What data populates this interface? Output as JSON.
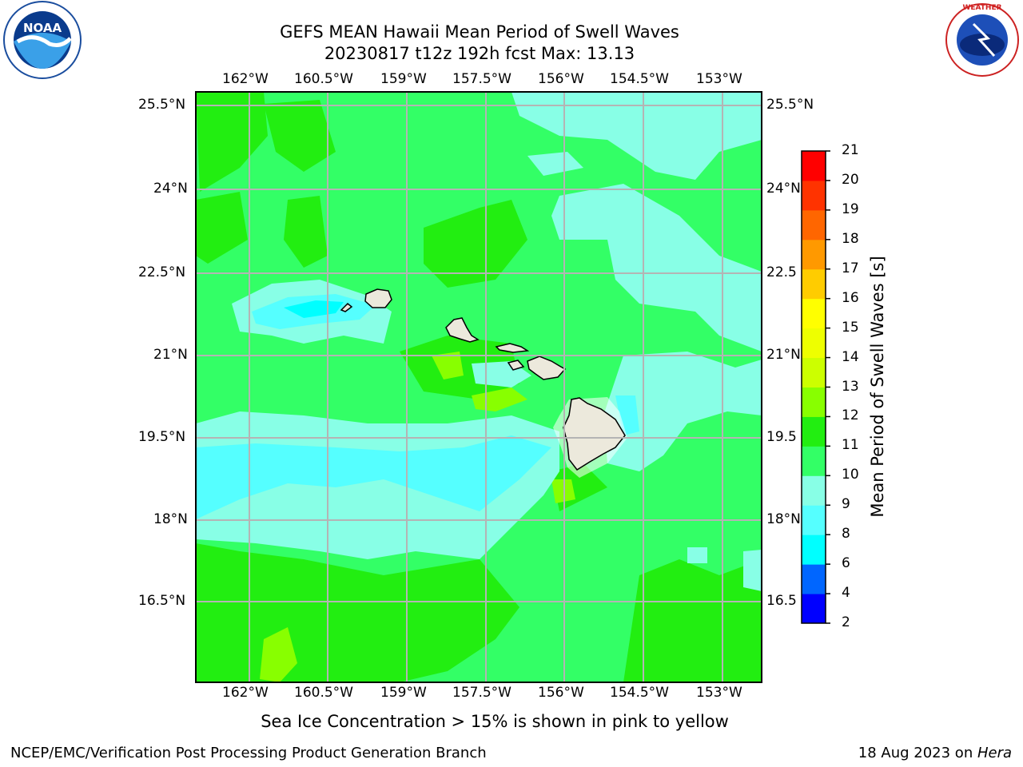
{
  "header": {
    "title_line1": "GEFS MEAN Hawaii Mean Period of Swell Waves",
    "title_line2": "20230817 t12z 192h fcst   Max: 13.13"
  },
  "map": {
    "lon_ticks": [
      "162°W",
      "160.5°W",
      "159°W",
      "157.5°W",
      "156°W",
      "154.5°W",
      "153°W"
    ],
    "lat_ticks": [
      "25.5°N",
      "24°N",
      "22.5°N",
      "21°N",
      "19.5°N",
      "18°N",
      "16.5°N"
    ],
    "lat_ticks_right": [
      "25.5°N",
      "24°N",
      "22.5",
      "21°N",
      "19.5",
      "18°N",
      "16.5"
    ]
  },
  "colorbar": {
    "label": "Mean Period of Swell Waves [s]",
    "ticks": [
      "2",
      "4",
      "6",
      "8",
      "9",
      "10",
      "11",
      "12",
      "13",
      "14",
      "15",
      "16",
      "17",
      "18",
      "19",
      "20",
      "21"
    ],
    "colors": [
      "#0000ff",
      "#0066ff",
      "#00ffff",
      "#55ffff",
      "#88ffe6",
      "#33ff66",
      "#22ee11",
      "#88ff00",
      "#ccff00",
      "#eeff00",
      "#ffff00",
      "#ffcc00",
      "#ff9900",
      "#ff6600",
      "#ff3300",
      "#ff0000"
    ]
  },
  "footer": {
    "note": "Sea Ice Concentration > 15% is shown in pink to yellow",
    "branch": "NCEP/EMC/Verification Post Processing Product Generation Branch",
    "date_text": "18 Aug 2023 on ",
    "machine": "Hera"
  },
  "logos": {
    "left": "NOAA",
    "right": "NATIONAL WEATHER SERVICE"
  }
}
